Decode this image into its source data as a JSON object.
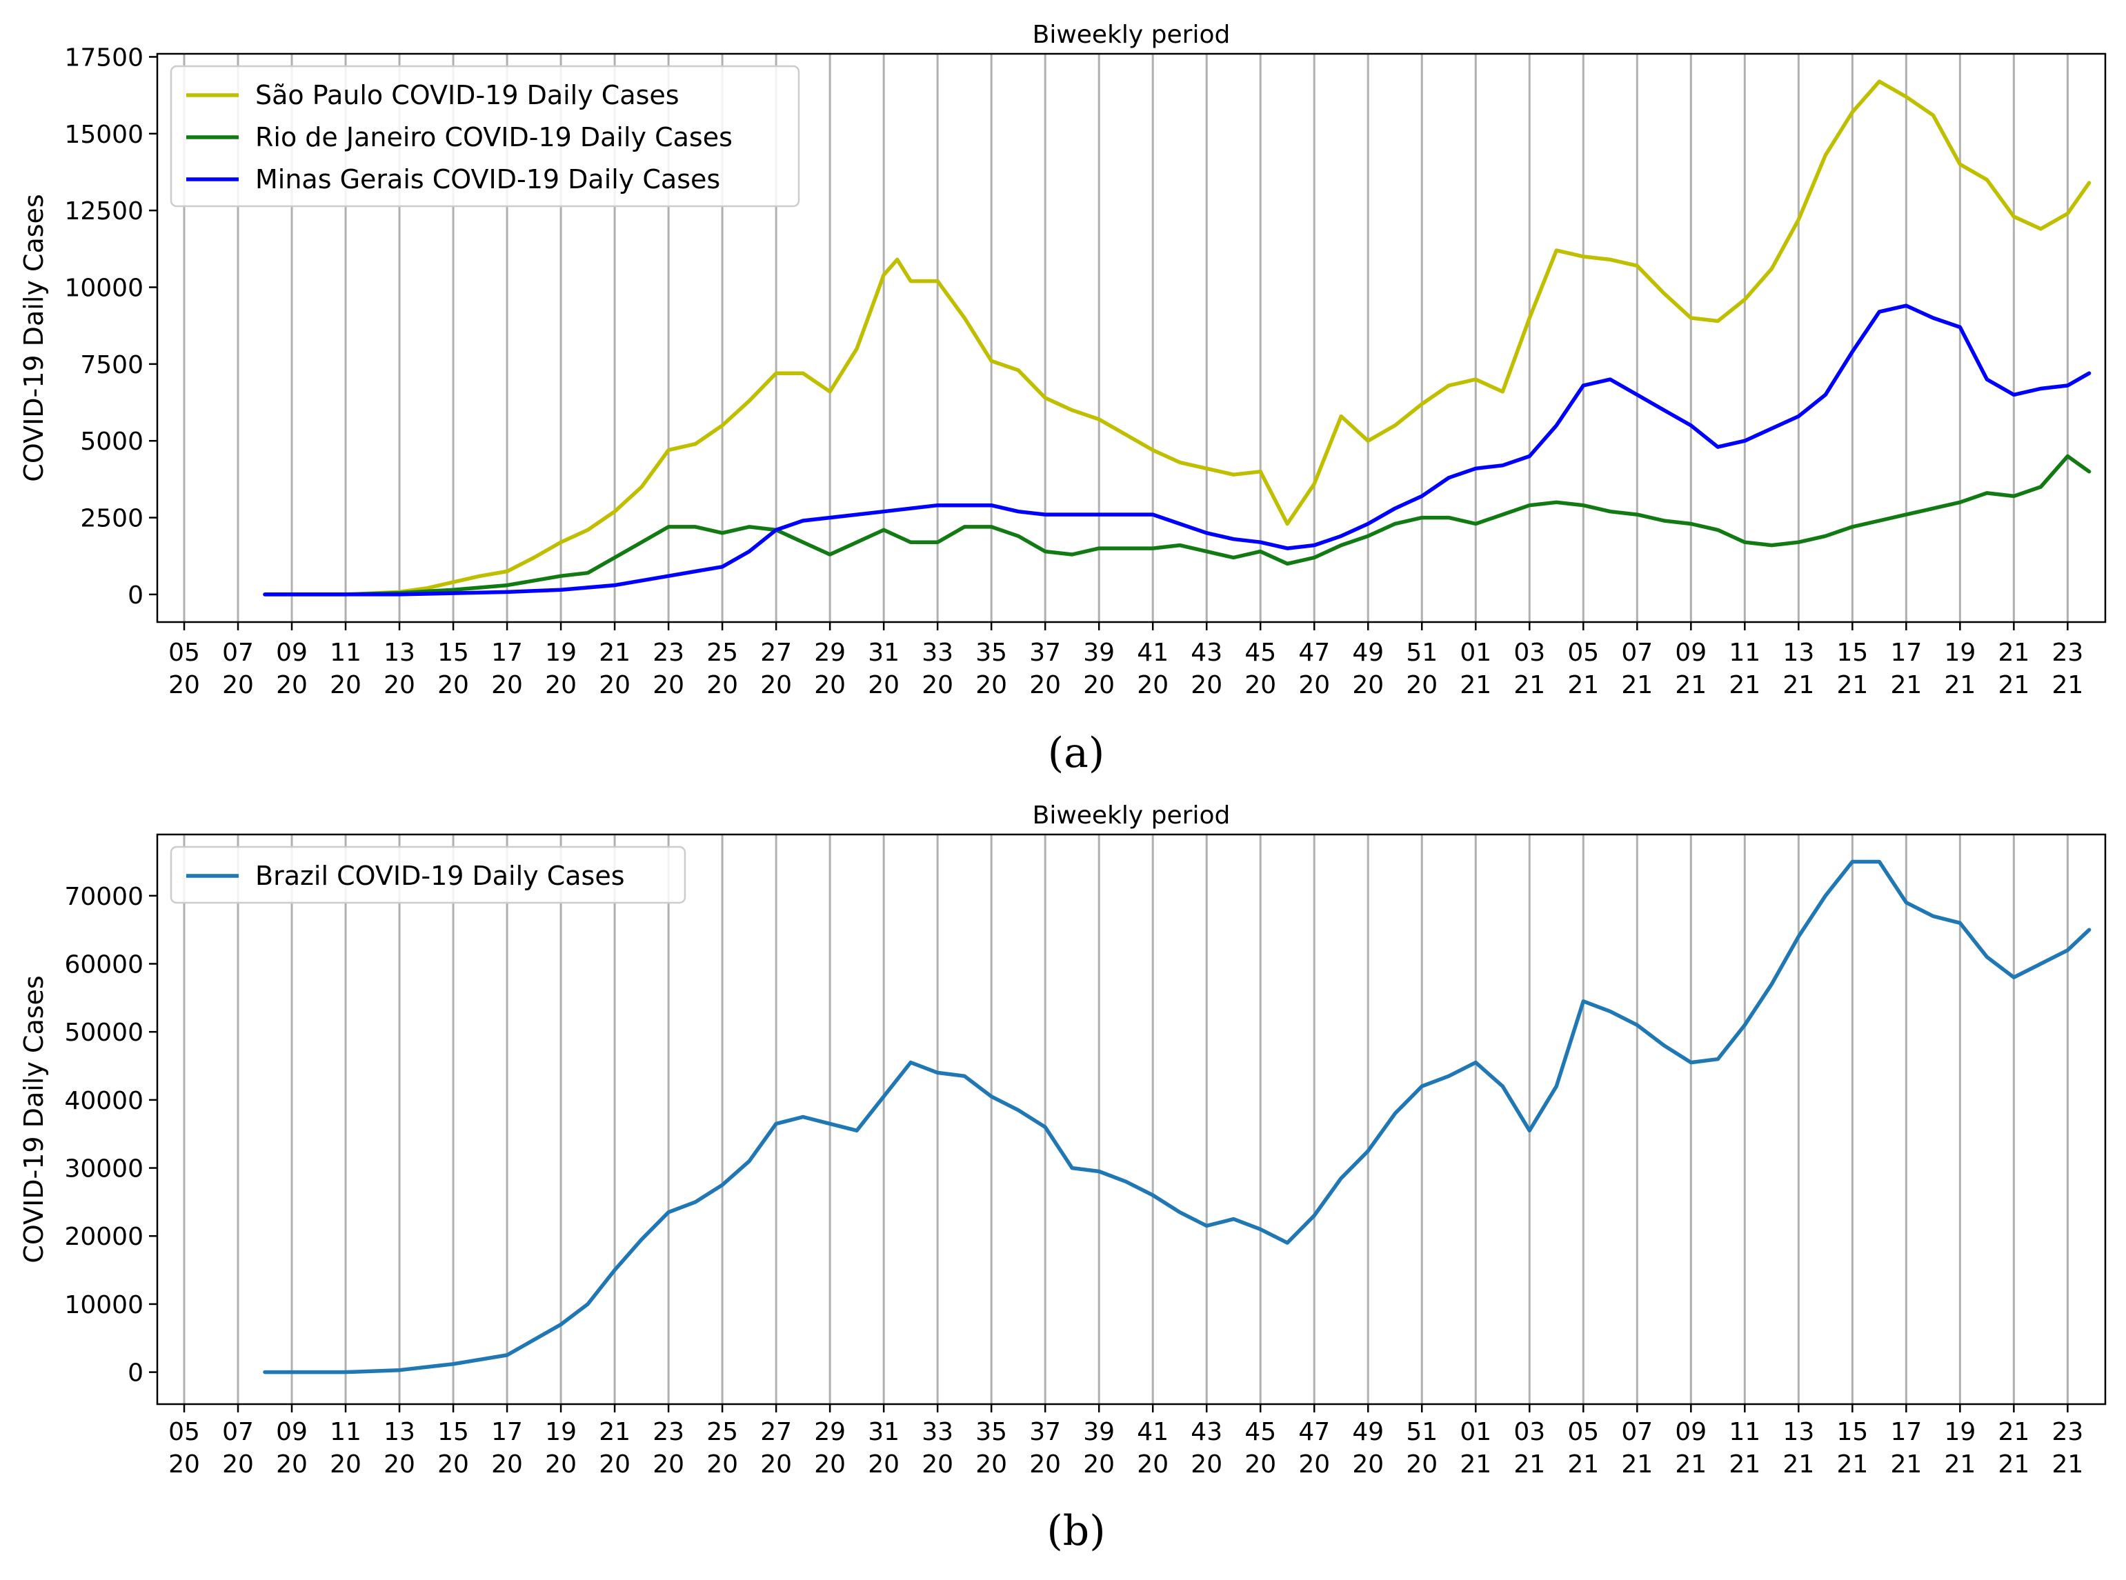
{
  "chart_data": [
    {
      "type": "line",
      "panel_label": "(a)",
      "title": "Biweekly period",
      "xlabel": "",
      "ylabel": "COVID-19 Daily Cases",
      "grid": "vertical",
      "legend_position": "top-left",
      "x_ticks": [
        {
          "top": "05",
          "bottom": "20"
        },
        {
          "top": "07",
          "bottom": "20"
        },
        {
          "top": "09",
          "bottom": "20"
        },
        {
          "top": "11",
          "bottom": "20"
        },
        {
          "top": "13",
          "bottom": "20"
        },
        {
          "top": "15",
          "bottom": "20"
        },
        {
          "top": "17",
          "bottom": "20"
        },
        {
          "top": "19",
          "bottom": "20"
        },
        {
          "top": "21",
          "bottom": "20"
        },
        {
          "top": "23",
          "bottom": "20"
        },
        {
          "top": "25",
          "bottom": "20"
        },
        {
          "top": "27",
          "bottom": "20"
        },
        {
          "top": "29",
          "bottom": "20"
        },
        {
          "top": "31",
          "bottom": "20"
        },
        {
          "top": "33",
          "bottom": "20"
        },
        {
          "top": "35",
          "bottom": "20"
        },
        {
          "top": "37",
          "bottom": "20"
        },
        {
          "top": "39",
          "bottom": "20"
        },
        {
          "top": "41",
          "bottom": "20"
        },
        {
          "top": "43",
          "bottom": "20"
        },
        {
          "top": "45",
          "bottom": "20"
        },
        {
          "top": "47",
          "bottom": "20"
        },
        {
          "top": "49",
          "bottom": "20"
        },
        {
          "top": "51",
          "bottom": "20"
        },
        {
          "top": "01",
          "bottom": "21"
        },
        {
          "top": "03",
          "bottom": "21"
        },
        {
          "top": "05",
          "bottom": "21"
        },
        {
          "top": "07",
          "bottom": "21"
        },
        {
          "top": "09",
          "bottom": "21"
        },
        {
          "top": "11",
          "bottom": "21"
        },
        {
          "top": "13",
          "bottom": "21"
        },
        {
          "top": "15",
          "bottom": "21"
        },
        {
          "top": "17",
          "bottom": "21"
        },
        {
          "top": "19",
          "bottom": "21"
        },
        {
          "top": "21",
          "bottom": "21"
        },
        {
          "top": "23",
          "bottom": "21"
        }
      ],
      "xlim": [
        -0.5,
        35.7
      ],
      "ylim": [
        -900,
        17600
      ],
      "y_ticks": [
        0,
        2500,
        5000,
        7500,
        10000,
        12500,
        15000,
        17500
      ],
      "series": [
        {
          "name": "São Paulo COVID-19 Daily Cases",
          "color": "#bfbf00",
          "x": [
            1.5,
            3,
            4,
            4.5,
            5,
            5.5,
            6,
            6.5,
            7,
            7.5,
            8,
            8.5,
            9,
            9.5,
            10,
            10.5,
            11,
            11.5,
            12,
            12.5,
            13,
            13.25,
            13.5,
            14,
            14.5,
            15,
            15.5,
            16,
            16.5,
            17,
            17.5,
            18,
            18.5,
            19,
            19.5,
            20,
            20.5,
            21,
            21.5,
            22,
            22.5,
            23,
            23.5,
            24,
            24.5,
            25,
            25.5,
            26,
            26.5,
            27,
            27.5,
            28,
            28.5,
            29,
            29.5,
            30,
            30.5,
            31,
            31.5,
            32,
            32.5,
            33,
            33.5,
            34,
            34.5,
            35,
            35.4
          ],
          "values": [
            0,
            0,
            80,
            200,
            400,
            600,
            750,
            1200,
            1700,
            2100,
            2700,
            3500,
            4700,
            4900,
            5500,
            6300,
            7200,
            7200,
            6600,
            8000,
            10400,
            10900,
            10200,
            10200,
            9000,
            7600,
            7300,
            6400,
            6000,
            5700,
            5200,
            4700,
            4300,
            4100,
            3900,
            4000,
            2300,
            3600,
            5800,
            5000,
            5500,
            6200,
            6800,
            7000,
            6600,
            9000,
            11200,
            11000,
            10900,
            10700,
            9800,
            9000,
            8900,
            9600,
            10600,
            12200,
            14300,
            15700,
            16700,
            16200,
            15600,
            14000,
            13500,
            12300,
            11900,
            12400,
            13400
          ]
        },
        {
          "name": "Rio de Janeiro COVID-19 Daily Cases",
          "color": "#127a12",
          "x": [
            1.5,
            3,
            4,
            5,
            6,
            7,
            7.5,
            8,
            8.5,
            9,
            9.5,
            10,
            10.5,
            11,
            11.5,
            12,
            12.5,
            13,
            13.5,
            14,
            14.5,
            15,
            15.5,
            16,
            16.5,
            17,
            17.5,
            18,
            18.5,
            19,
            19.5,
            20,
            20.5,
            21,
            21.5,
            22,
            22.5,
            23,
            23.5,
            24,
            24.5,
            25,
            25.5,
            26,
            26.5,
            27,
            27.5,
            28,
            28.5,
            29,
            29.5,
            30,
            30.5,
            31,
            31.5,
            32,
            32.5,
            33,
            33.5,
            34,
            34.5,
            35,
            35.4
          ],
          "values": [
            0,
            0,
            50,
            150,
            300,
            600,
            700,
            1200,
            1700,
            2200,
            2200,
            2000,
            2200,
            2100,
            1700,
            1300,
            1700,
            2100,
            1700,
            1700,
            2200,
            2200,
            1900,
            1400,
            1300,
            1500,
            1500,
            1500,
            1600,
            1400,
            1200,
            1400,
            1000,
            1200,
            1600,
            1900,
            2300,
            2500,
            2500,
            2300,
            2600,
            2900,
            3000,
            2900,
            2700,
            2600,
            2400,
            2300,
            2100,
            1700,
            1600,
            1700,
            1900,
            2200,
            2400,
            2600,
            2800,
            3000,
            3300,
            3200,
            3500,
            4500,
            4000
          ]
        },
        {
          "name": "Minas Gerais COVID-19 Daily Cases",
          "color": "#0000ff",
          "x": [
            1.5,
            4,
            6,
            7,
            8,
            9,
            10,
            10.5,
            11,
            11.5,
            12,
            13,
            14,
            15,
            15.5,
            16,
            17,
            18,
            18.5,
            19,
            19.5,
            20,
            20.5,
            21,
            21.5,
            22,
            22.5,
            23,
            23.5,
            24,
            24.5,
            25,
            25.5,
            26,
            26.5,
            27,
            27.5,
            28,
            28.5,
            29,
            29.5,
            30,
            30.5,
            31,
            31.5,
            32,
            32.5,
            33,
            33.5,
            34,
            34.5,
            35,
            35.4
          ],
          "values": [
            0,
            0,
            80,
            150,
            300,
            600,
            900,
            1400,
            2100,
            2400,
            2500,
            2700,
            2900,
            2900,
            2700,
            2600,
            2600,
            2600,
            2300,
            2000,
            1800,
            1700,
            1500,
            1600,
            1900,
            2300,
            2800,
            3200,
            3800,
            4100,
            4200,
            4500,
            5500,
            6800,
            7000,
            6500,
            6000,
            5500,
            4800,
            5000,
            5400,
            5800,
            6500,
            7900,
            9200,
            9400,
            9000,
            8700,
            7000,
            6500,
            6700,
            6800,
            7200
          ]
        }
      ]
    },
    {
      "type": "line",
      "panel_label": "(b)",
      "title": "Biweekly period",
      "xlabel": "",
      "ylabel": "COVID-19 Daily Cases",
      "grid": "vertical",
      "legend_position": "top-left",
      "x_ticks": [
        {
          "top": "05",
          "bottom": "20"
        },
        {
          "top": "07",
          "bottom": "20"
        },
        {
          "top": "09",
          "bottom": "20"
        },
        {
          "top": "11",
          "bottom": "20"
        },
        {
          "top": "13",
          "bottom": "20"
        },
        {
          "top": "15",
          "bottom": "20"
        },
        {
          "top": "17",
          "bottom": "20"
        },
        {
          "top": "19",
          "bottom": "20"
        },
        {
          "top": "21",
          "bottom": "20"
        },
        {
          "top": "23",
          "bottom": "20"
        },
        {
          "top": "25",
          "bottom": "20"
        },
        {
          "top": "27",
          "bottom": "20"
        },
        {
          "top": "29",
          "bottom": "20"
        },
        {
          "top": "31",
          "bottom": "20"
        },
        {
          "top": "33",
          "bottom": "20"
        },
        {
          "top": "35",
          "bottom": "20"
        },
        {
          "top": "37",
          "bottom": "20"
        },
        {
          "top": "39",
          "bottom": "20"
        },
        {
          "top": "41",
          "bottom": "20"
        },
        {
          "top": "43",
          "bottom": "20"
        },
        {
          "top": "45",
          "bottom": "20"
        },
        {
          "top": "47",
          "bottom": "20"
        },
        {
          "top": "49",
          "bottom": "20"
        },
        {
          "top": "51",
          "bottom": "20"
        },
        {
          "top": "01",
          "bottom": "21"
        },
        {
          "top": "03",
          "bottom": "21"
        },
        {
          "top": "05",
          "bottom": "21"
        },
        {
          "top": "07",
          "bottom": "21"
        },
        {
          "top": "09",
          "bottom": "21"
        },
        {
          "top": "11",
          "bottom": "21"
        },
        {
          "top": "13",
          "bottom": "21"
        },
        {
          "top": "15",
          "bottom": "21"
        },
        {
          "top": "17",
          "bottom": "21"
        },
        {
          "top": "19",
          "bottom": "21"
        },
        {
          "top": "21",
          "bottom": "21"
        },
        {
          "top": "23",
          "bottom": "21"
        }
      ],
      "xlim": [
        -0.5,
        35.7
      ],
      "ylim": [
        -4700,
        79000
      ],
      "y_ticks": [
        0,
        10000,
        20000,
        30000,
        40000,
        50000,
        60000,
        70000
      ],
      "series": [
        {
          "name": "Brazil COVID-19 Daily Cases",
          "color": "#1f77b4",
          "x": [
            1.5,
            3,
            4,
            5,
            6,
            7,
            7.5,
            8,
            8.5,
            9,
            9.5,
            10,
            10.5,
            11,
            11.5,
            12,
            12.5,
            13,
            13.5,
            14,
            14.5,
            15,
            15.5,
            16,
            16.5,
            17,
            17.5,
            18,
            18.5,
            19,
            19.5,
            20,
            20.5,
            21,
            21.5,
            22,
            22.5,
            23,
            23.5,
            24,
            24.5,
            25,
            25.5,
            26,
            26.5,
            27,
            27.5,
            28,
            28.5,
            29,
            29.5,
            30,
            30.5,
            31,
            31.5,
            32,
            32.5,
            33,
            33.5,
            34,
            34.5,
            35,
            35.4
          ],
          "values": [
            0,
            0,
            300,
            1200,
            2500,
            7000,
            10000,
            15000,
            19500,
            23500,
            25000,
            27500,
            31000,
            36500,
            37500,
            36500,
            35500,
            40500,
            45500,
            44000,
            43500,
            40500,
            38500,
            36000,
            30000,
            29500,
            28000,
            26000,
            23500,
            21500,
            22500,
            21000,
            19000,
            23000,
            28500,
            32500,
            38000,
            42000,
            43500,
            45500,
            42000,
            35500,
            42000,
            54500,
            53000,
            51000,
            48000,
            45500,
            46000,
            51000,
            57000,
            64000,
            70000,
            75000,
            75000,
            69000,
            67000,
            66000,
            61000,
            58000,
            60000,
            62000,
            65000
          ]
        }
      ]
    }
  ]
}
